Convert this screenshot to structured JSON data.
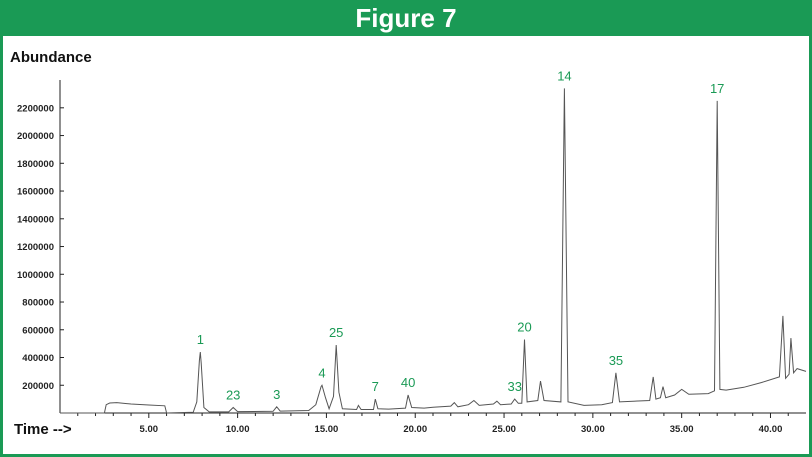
{
  "figure_title": "Figure 7",
  "colors": {
    "accent": "#1a9a55",
    "trace": "#555555",
    "axis": "#222222"
  },
  "chart_data": {
    "type": "line",
    "ylabel": "Abundance",
    "xlabel": "Time -->",
    "xlim": [
      0.0,
      42.0
    ],
    "ylim": [
      0,
      2350000
    ],
    "x_ticks": [
      5.0,
      10.0,
      15.0,
      20.0,
      25.0,
      30.0,
      35.0,
      40.0
    ],
    "x_tick_labels": [
      "5.00",
      "10.00",
      "15.00",
      "20.00",
      "25.00",
      "30.00",
      "35.00",
      "40.00"
    ],
    "y_ticks": [
      200000,
      400000,
      600000,
      800000,
      1000000,
      1200000,
      1400000,
      1600000,
      1800000,
      2000000,
      2200000
    ],
    "y_tick_labels": [
      "200000",
      "400000",
      "600000",
      "800000",
      "1000000",
      "1200000",
      "1400000",
      "1600000",
      "1800000",
      "2000000",
      "2200000"
    ],
    "peaks": [
      {
        "label": "1",
        "time": 7.9,
        "abundance": 440000
      },
      {
        "label": "23",
        "time": 9.75,
        "abundance": 40000
      },
      {
        "label": "3",
        "time": 12.2,
        "abundance": 45000
      },
      {
        "label": "4",
        "time": 14.75,
        "abundance": 200000
      },
      {
        "label": "25",
        "time": 15.55,
        "abundance": 490000
      },
      {
        "label": "7",
        "time": 17.75,
        "abundance": 100000
      },
      {
        "label": "40",
        "time": 19.6,
        "abundance": 130000
      },
      {
        "label": "33",
        "time": 25.6,
        "abundance": 100000
      },
      {
        "label": "20",
        "time": 26.15,
        "abundance": 530000
      },
      {
        "label": "14",
        "time": 28.4,
        "abundance": 2340000
      },
      {
        "label": "35",
        "time": 31.3,
        "abundance": 290000
      },
      {
        "label": "17",
        "time": 37.0,
        "abundance": 2250000
      }
    ],
    "series": [
      {
        "points": [
          [
            0.0,
            0
          ],
          [
            2.5,
            0
          ],
          [
            2.6,
            60000
          ],
          [
            2.8,
            72000
          ],
          [
            3.2,
            75000
          ],
          [
            4.0,
            65000
          ],
          [
            5.0,
            58000
          ],
          [
            5.9,
            52000
          ],
          [
            6.0,
            0
          ],
          [
            7.5,
            5000
          ],
          [
            7.7,
            80000
          ],
          [
            7.85,
            380000
          ],
          [
            7.9,
            440000
          ],
          [
            7.95,
            360000
          ],
          [
            8.1,
            40000
          ],
          [
            8.4,
            8000
          ],
          [
            9.5,
            8000
          ],
          [
            9.75,
            40000
          ],
          [
            10.0,
            10000
          ],
          [
            12.0,
            12000
          ],
          [
            12.2,
            45000
          ],
          [
            12.4,
            14000
          ],
          [
            14.0,
            18000
          ],
          [
            14.4,
            60000
          ],
          [
            14.7,
            190000
          ],
          [
            14.75,
            200000
          ],
          [
            14.95,
            110000
          ],
          [
            15.15,
            30000
          ],
          [
            15.4,
            120000
          ],
          [
            15.55,
            490000
          ],
          [
            15.7,
            150000
          ],
          [
            15.9,
            30000
          ],
          [
            16.7,
            25000
          ],
          [
            16.8,
            55000
          ],
          [
            16.95,
            25000
          ],
          [
            17.65,
            25000
          ],
          [
            17.75,
            100000
          ],
          [
            17.9,
            30000
          ],
          [
            18.5,
            28000
          ],
          [
            19.45,
            35000
          ],
          [
            19.6,
            130000
          ],
          [
            19.8,
            40000
          ],
          [
            20.5,
            35000
          ],
          [
            21.0,
            42000
          ],
          [
            22.0,
            50000
          ],
          [
            22.2,
            75000
          ],
          [
            22.4,
            45000
          ],
          [
            23.0,
            60000
          ],
          [
            23.3,
            90000
          ],
          [
            23.6,
            55000
          ],
          [
            24.4,
            65000
          ],
          [
            24.6,
            85000
          ],
          [
            24.8,
            60000
          ],
          [
            25.4,
            65000
          ],
          [
            25.6,
            100000
          ],
          [
            25.8,
            70000
          ],
          [
            26.0,
            70000
          ],
          [
            26.15,
            530000
          ],
          [
            26.3,
            80000
          ],
          [
            26.9,
            90000
          ],
          [
            27.05,
            230000
          ],
          [
            27.25,
            90000
          ],
          [
            28.2,
            80000
          ],
          [
            28.4,
            2340000
          ],
          [
            28.6,
            80000
          ],
          [
            29.5,
            55000
          ],
          [
            30.5,
            60000
          ],
          [
            31.1,
            75000
          ],
          [
            31.3,
            290000
          ],
          [
            31.5,
            80000
          ],
          [
            33.2,
            90000
          ],
          [
            33.4,
            260000
          ],
          [
            33.55,
            100000
          ],
          [
            33.8,
            110000
          ],
          [
            33.95,
            190000
          ],
          [
            34.1,
            110000
          ],
          [
            34.6,
            130000
          ],
          [
            35.0,
            170000
          ],
          [
            35.4,
            135000
          ],
          [
            36.5,
            140000
          ],
          [
            36.85,
            160000
          ],
          [
            37.0,
            2250000
          ],
          [
            37.15,
            170000
          ],
          [
            37.5,
            165000
          ],
          [
            38.5,
            185000
          ],
          [
            39.5,
            220000
          ],
          [
            40.5,
            260000
          ],
          [
            40.7,
            700000
          ],
          [
            40.85,
            250000
          ],
          [
            41.05,
            280000
          ],
          [
            41.15,
            540000
          ],
          [
            41.3,
            290000
          ],
          [
            41.5,
            320000
          ],
          [
            42.0,
            300000
          ]
        ]
      }
    ]
  }
}
